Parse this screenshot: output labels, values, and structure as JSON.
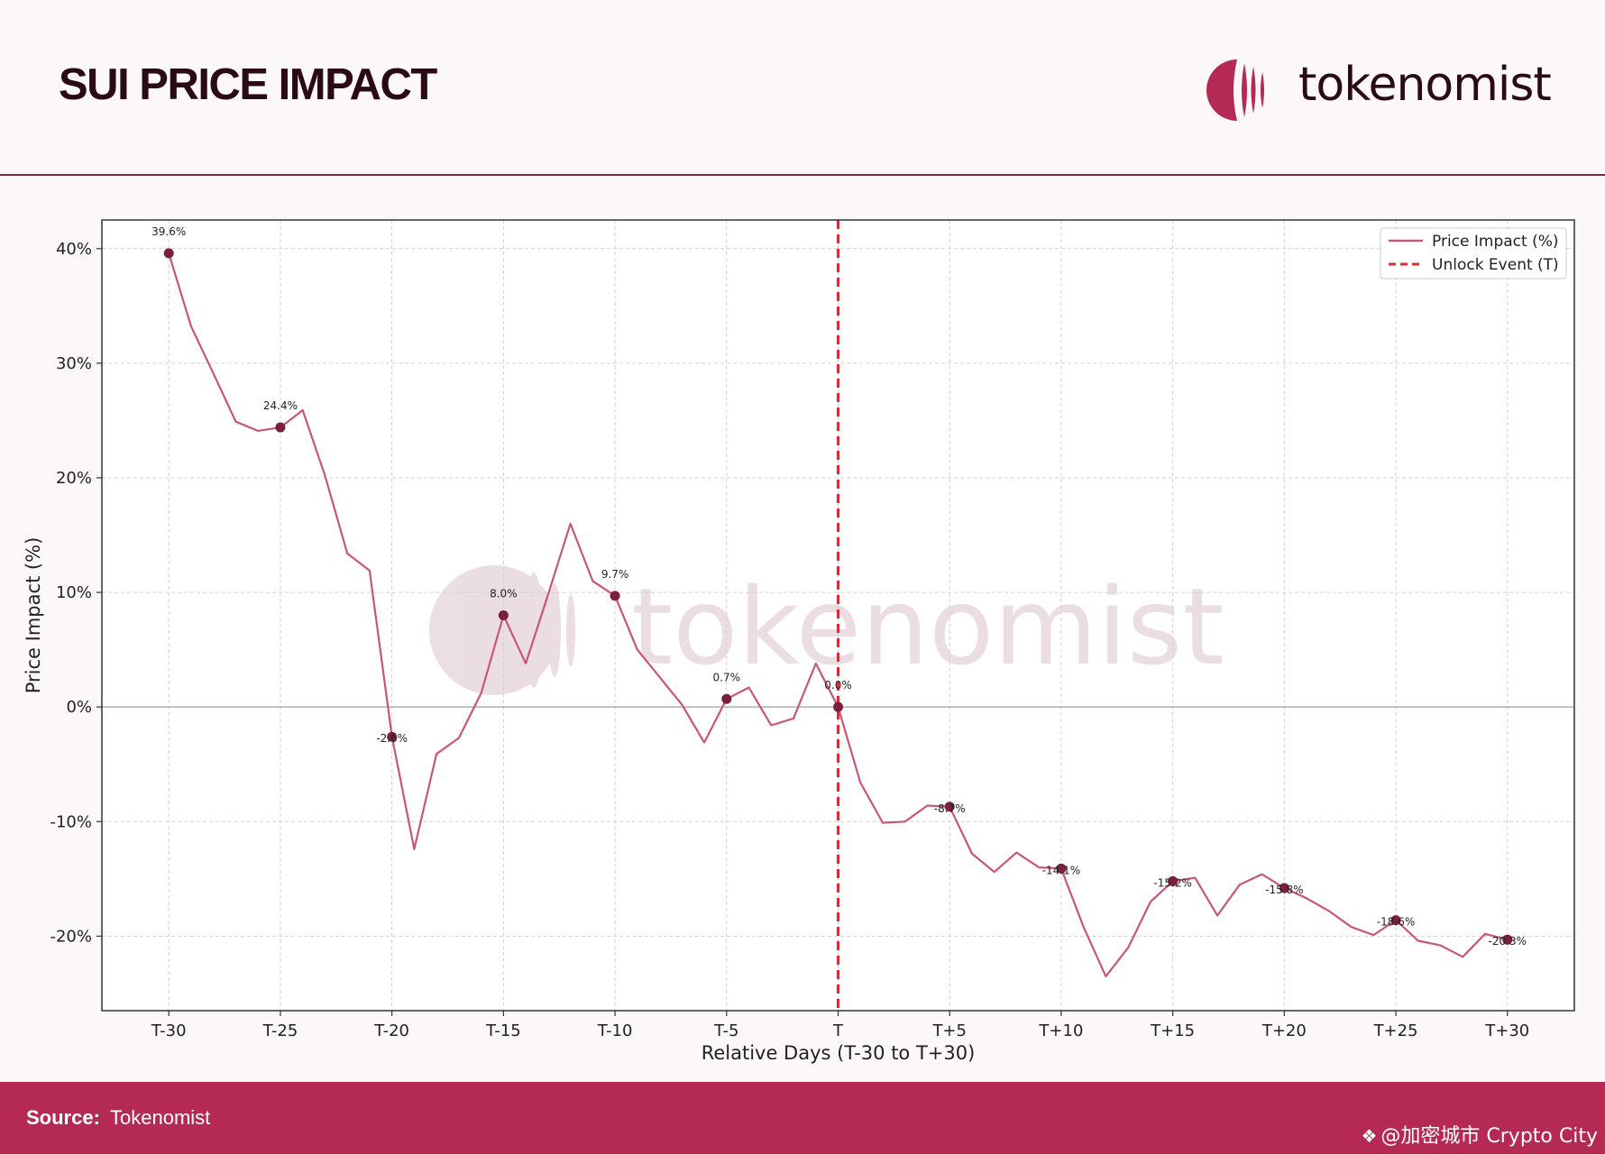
{
  "header": {
    "title": "SUI PRICE IMPACT",
    "brand": "tokenomist"
  },
  "footer": {
    "source_label": "Source:",
    "source_value": "Tokenomist"
  },
  "watermark": {
    "text": "@加密城市 Crypto City",
    "icon": "binance-diamond-icon"
  },
  "colors": {
    "line": "#c7567d",
    "marker": "#7a1f3d",
    "event": "#d0303a",
    "footer": "#b42a55",
    "title": "#2a0a17"
  },
  "chart_data": {
    "type": "line",
    "xlabel": "Relative Days (T-30 to T+30)",
    "ylabel": "Price Impact (%)",
    "xlim": [
      -33,
      33
    ],
    "ylim": [
      -26.5,
      42.5
    ],
    "grid": true,
    "legend_position": "top-right",
    "x_ticks": [
      -30,
      -25,
      -20,
      -15,
      -10,
      -5,
      0,
      5,
      10,
      15,
      20,
      25,
      30
    ],
    "x_tick_labels": [
      "T-30",
      "T-25",
      "T-20",
      "T-15",
      "T-10",
      "T-5",
      "T",
      "T+5",
      "T+10",
      "T+15",
      "T+20",
      "T+25",
      "T+30"
    ],
    "y_ticks": [
      -20,
      -10,
      0,
      10,
      20,
      30,
      40
    ],
    "y_tick_labels": [
      "-20%",
      "-10%",
      "0%",
      "10%",
      "20%",
      "30%",
      "40%"
    ],
    "zero_line": true,
    "series": [
      {
        "name": "Price Impact (%)",
        "x": [
          -30,
          -29,
          -28,
          -27,
          -26,
          -25,
          -24,
          -23,
          -22,
          -21,
          -20,
          -19,
          -18,
          -17,
          -16,
          -15,
          -14,
          -13,
          -12,
          -11,
          -10,
          -9,
          -8,
          -7,
          -6,
          -5,
          -4,
          -3,
          -2,
          -1,
          0,
          1,
          2,
          3,
          4,
          5,
          6,
          7,
          8,
          9,
          10,
          11,
          12,
          13,
          14,
          15,
          16,
          17,
          18,
          19,
          20,
          21,
          22,
          23,
          24,
          25,
          26,
          27,
          28,
          29,
          30
        ],
        "y": [
          39.6,
          33.2,
          29.1,
          24.9,
          24.1,
          24.4,
          25.9,
          20.2,
          13.4,
          11.9,
          -2.6,
          -12.4,
          -4.1,
          -2.7,
          1.2,
          8.0,
          3.8,
          9.8,
          16.0,
          11.0,
          9.7,
          5.0,
          2.6,
          0.2,
          -3.1,
          0.7,
          1.7,
          -1.6,
          -1.0,
          3.8,
          0.0,
          -6.6,
          -10.1,
          -10.0,
          -8.6,
          -8.7,
          -12.8,
          -14.4,
          -12.7,
          -14.0,
          -14.1,
          -19.2,
          -23.5,
          -21.0,
          -17.0,
          -15.2,
          -14.9,
          -18.2,
          -15.5,
          -14.6,
          -15.8,
          -16.7,
          -17.8,
          -19.2,
          -19.9,
          -18.6,
          -20.4,
          -20.8,
          -21.8,
          -19.8,
          -20.3
        ]
      }
    ],
    "annotated_points": [
      {
        "x": -30,
        "y": 39.6,
        "label": "39.6%"
      },
      {
        "x": -25,
        "y": 24.4,
        "label": "24.4%"
      },
      {
        "x": -20,
        "y": -2.6,
        "label": "-2.6%"
      },
      {
        "x": -15,
        "y": 8.0,
        "label": "8.0%"
      },
      {
        "x": -10,
        "y": 9.7,
        "label": "9.7%"
      },
      {
        "x": -5,
        "y": 0.7,
        "label": "0.7%"
      },
      {
        "x": 0,
        "y": 0.0,
        "label": "0.0%"
      },
      {
        "x": 5,
        "y": -8.7,
        "label": "-8.7%"
      },
      {
        "x": 10,
        "y": -14.1,
        "label": "-14.1%"
      },
      {
        "x": 15,
        "y": -15.2,
        "label": "-15.2%"
      },
      {
        "x": 20,
        "y": -15.8,
        "label": "-15.8%"
      },
      {
        "x": 25,
        "y": -18.6,
        "label": "-18.6%"
      },
      {
        "x": 30,
        "y": -20.3,
        "label": "-20.3%"
      }
    ],
    "event_line": {
      "x": 0,
      "name": "Unlock Event (T)"
    },
    "legend": [
      "Price Impact (%)",
      "Unlock Event (T)"
    ],
    "background_watermark": "tokenomist"
  }
}
